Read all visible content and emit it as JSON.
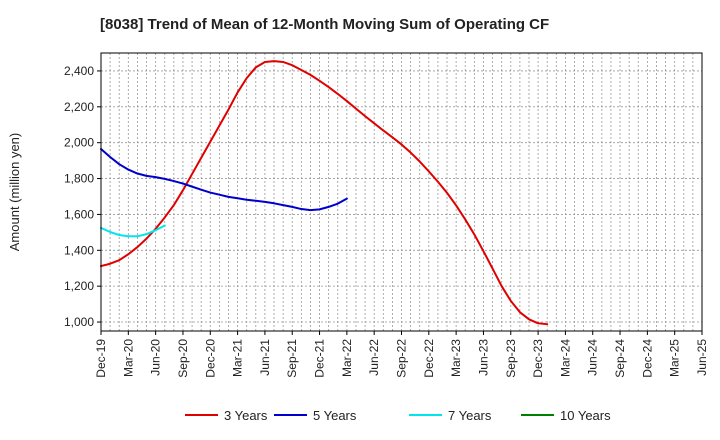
{
  "chart_data": {
    "type": "line",
    "title": "[8038]  Trend of Mean of 12-Month Moving Sum of Operating CF",
    "xlabel": "",
    "ylabel": "Amount (million yen)",
    "ylim": [
      950,
      2500
    ],
    "yticks": [
      1000,
      1200,
      1400,
      1600,
      1800,
      2000,
      2200,
      2400
    ],
    "ytick_labels": [
      "1,000",
      "1,200",
      "1,400",
      "1,600",
      "1,800",
      "2,000",
      "2,200",
      "2,400"
    ],
    "x_range_months": [
      0,
      66
    ],
    "xticks": [
      {
        "m": 0,
        "label": "Dec-19"
      },
      {
        "m": 3,
        "label": "Mar-20"
      },
      {
        "m": 6,
        "label": "Jun-20"
      },
      {
        "m": 9,
        "label": "Sep-20"
      },
      {
        "m": 12,
        "label": "Dec-20"
      },
      {
        "m": 15,
        "label": "Mar-21"
      },
      {
        "m": 18,
        "label": "Jun-21"
      },
      {
        "m": 21,
        "label": "Sep-21"
      },
      {
        "m": 24,
        "label": "Dec-21"
      },
      {
        "m": 27,
        "label": "Mar-22"
      },
      {
        "m": 30,
        "label": "Jun-22"
      },
      {
        "m": 33,
        "label": "Sep-22"
      },
      {
        "m": 36,
        "label": "Dec-22"
      },
      {
        "m": 39,
        "label": "Mar-23"
      },
      {
        "m": 42,
        "label": "Jun-23"
      },
      {
        "m": 45,
        "label": "Sep-23"
      },
      {
        "m": 48,
        "label": "Dec-23"
      },
      {
        "m": 51,
        "label": "Mar-24"
      },
      {
        "m": 54,
        "label": "Jun-24"
      },
      {
        "m": 57,
        "label": "Sep-24"
      },
      {
        "m": 60,
        "label": "Dec-24"
      },
      {
        "m": 63,
        "label": "Mar-25"
      },
      {
        "m": 66,
        "label": "Jun-25"
      }
    ],
    "grid": true,
    "legend_position": "bottom",
    "series": [
      {
        "name": "3 Years",
        "color": "#e00000",
        "points": [
          [
            0,
            1312
          ],
          [
            1,
            1325
          ],
          [
            2,
            1345
          ],
          [
            3,
            1378
          ],
          [
            4,
            1418
          ],
          [
            5,
            1465
          ],
          [
            6,
            1520
          ],
          [
            7,
            1583
          ],
          [
            8,
            1652
          ],
          [
            9,
            1735
          ],
          [
            10,
            1825
          ],
          [
            11,
            1915
          ],
          [
            12,
            2005
          ],
          [
            13,
            2095
          ],
          [
            14,
            2185
          ],
          [
            15,
            2280
          ],
          [
            16,
            2360
          ],
          [
            17,
            2420
          ],
          [
            18,
            2450
          ],
          [
            19,
            2455
          ],
          [
            20,
            2450
          ],
          [
            21,
            2432
          ],
          [
            22,
            2405
          ],
          [
            23,
            2378
          ],
          [
            24,
            2345
          ],
          [
            25,
            2310
          ],
          [
            26,
            2272
          ],
          [
            27,
            2232
          ],
          [
            28,
            2190
          ],
          [
            29,
            2148
          ],
          [
            30,
            2108
          ],
          [
            31,
            2068
          ],
          [
            32,
            2030
          ],
          [
            33,
            1990
          ],
          [
            34,
            1945
          ],
          [
            35,
            1895
          ],
          [
            36,
            1840
          ],
          [
            37,
            1782
          ],
          [
            38,
            1720
          ],
          [
            39,
            1650
          ],
          [
            40,
            1572
          ],
          [
            41,
            1488
          ],
          [
            42,
            1395
          ],
          [
            43,
            1298
          ],
          [
            44,
            1200
          ],
          [
            45,
            1118
          ],
          [
            46,
            1055
          ],
          [
            47,
            1015
          ],
          [
            48,
            993
          ],
          [
            49,
            988
          ]
        ]
      },
      {
        "name": "5 Years",
        "color": "#0000cc",
        "points": [
          [
            0,
            1965
          ],
          [
            1,
            1920
          ],
          [
            2,
            1880
          ],
          [
            3,
            1850
          ],
          [
            4,
            1828
          ],
          [
            5,
            1815
          ],
          [
            6,
            1808
          ],
          [
            7,
            1798
          ],
          [
            8,
            1786
          ],
          [
            9,
            1772
          ],
          [
            10,
            1755
          ],
          [
            11,
            1738
          ],
          [
            12,
            1722
          ],
          [
            13,
            1710
          ],
          [
            14,
            1698
          ],
          [
            15,
            1690
          ],
          [
            16,
            1682
          ],
          [
            17,
            1676
          ],
          [
            18,
            1670
          ],
          [
            19,
            1662
          ],
          [
            20,
            1652
          ],
          [
            21,
            1642
          ],
          [
            22,
            1630
          ],
          [
            23,
            1624
          ],
          [
            24,
            1628
          ],
          [
            25,
            1642
          ],
          [
            26,
            1660
          ],
          [
            27,
            1688
          ]
        ]
      },
      {
        "name": "7 Years",
        "color": "#00e5ee",
        "points": [
          [
            0,
            1525
          ],
          [
            1,
            1502
          ],
          [
            2,
            1485
          ],
          [
            3,
            1478
          ],
          [
            4,
            1478
          ],
          [
            5,
            1490
          ],
          [
            6,
            1512
          ],
          [
            7,
            1538
          ]
        ]
      },
      {
        "name": "10 Years",
        "color": "#008000",
        "points": []
      }
    ]
  }
}
